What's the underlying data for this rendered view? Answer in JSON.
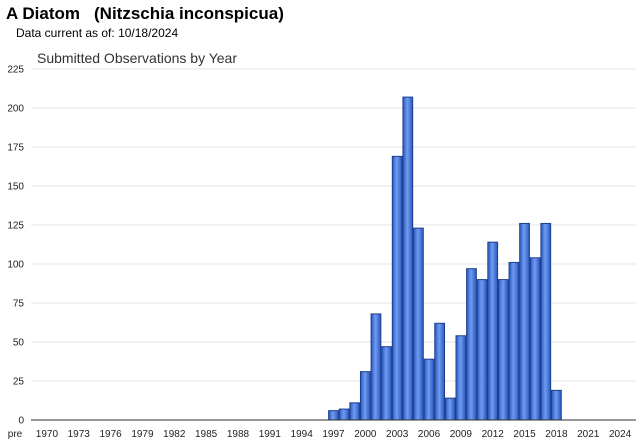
{
  "header": {
    "common_name": "A Diatom",
    "scientific_name": "(Nitzschia inconspicua)",
    "date_label": "Data current as of:",
    "date_value": "10/18/2024"
  },
  "colors": {
    "bar_fill": "#3a6fd8",
    "bar_stroke": "#1e3f8f",
    "grid": "#e4e4e4"
  },
  "chart_data": {
    "type": "bar",
    "title": "Submitted Observations by Year",
    "xlabel": "",
    "ylabel": "",
    "ylim": [
      0,
      225
    ],
    "yticks": [
      0,
      25,
      50,
      75,
      100,
      125,
      150,
      175,
      200,
      225
    ],
    "grid": true,
    "legend": "none",
    "x_tick_labels": [
      "pre",
      "1970",
      "1973",
      "1976",
      "1979",
      "1982",
      "1985",
      "1988",
      "1991",
      "1994",
      "1997",
      "2000",
      "2003",
      "2006",
      "2009",
      "2012",
      "2015",
      "2018",
      "2021",
      "2024"
    ],
    "x_axis_start": "pre",
    "x_axis_end_year": 2025,
    "categories": [
      "1997",
      "1998",
      "1999",
      "2000",
      "2001",
      "2002",
      "2003",
      "2004",
      "2005",
      "2006",
      "2007",
      "2008",
      "2009",
      "2010",
      "2011",
      "2012",
      "2013",
      "2014",
      "2015",
      "2016",
      "2017",
      "2018"
    ],
    "values": [
      6,
      7,
      11,
      31,
      68,
      47,
      169,
      207,
      123,
      39,
      62,
      14,
      54,
      97,
      90,
      114,
      90,
      101,
      126,
      104,
      126,
      19
    ]
  }
}
